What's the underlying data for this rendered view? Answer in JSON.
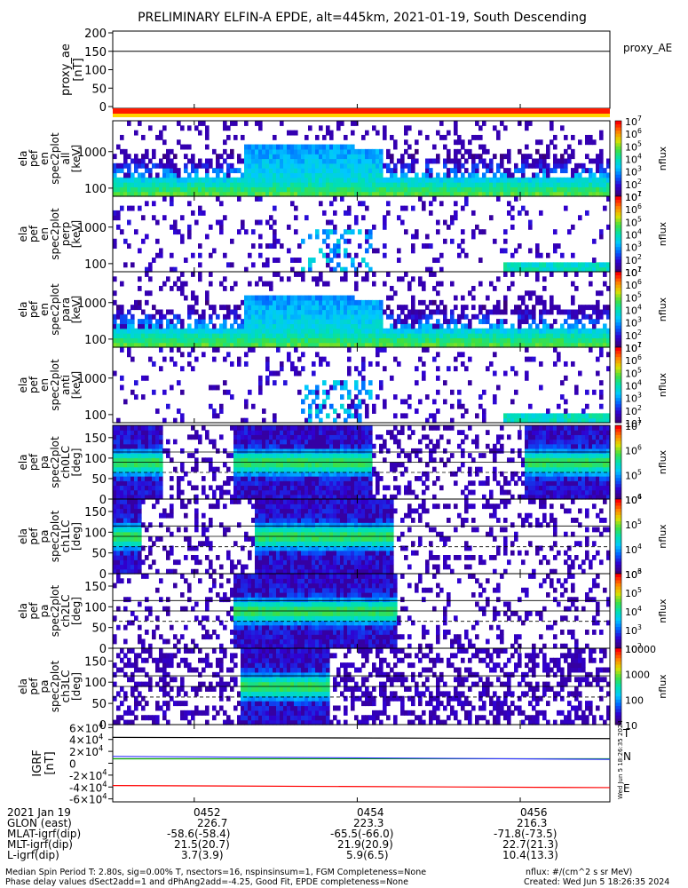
{
  "title": "PRELIMINARY ELFIN-A EPDE, alt=445km, 2021-01-19, South Descending",
  "colors": {
    "background": "#ffffff",
    "axis": "#000000",
    "proxy_bar_red": "#ff1a00",
    "proxy_bar_yellow": "#ffd400",
    "igrf_T": "#000000",
    "igrf_N": "#00a000",
    "igrf_E": "#ff0000",
    "igrf_blue": "#3030ff",
    "colorbar_stops": [
      "#ffffff",
      "#3a007a",
      "#3000d0",
      "#0060ff",
      "#00c8ff",
      "#00e0b0",
      "#40e040",
      "#e0e000",
      "#ff8000",
      "#ff0000"
    ]
  },
  "chart_data": [
    {
      "type": "line",
      "panel": "proxy_ae",
      "ylabel": "proxy_ae\n[nT]",
      "legend": "proxy_AE",
      "ylim": [
        0,
        200
      ],
      "yticks": [
        "200",
        "150",
        "100",
        "50",
        "0"
      ],
      "series": [
        {
          "name": "proxy_AE",
          "values": [
            150,
            150
          ]
        }
      ]
    },
    {
      "type": "heatmap",
      "panel": "pef_en_all",
      "ylabel": [
        "ela",
        "pef",
        "en",
        "spec2plot",
        "all",
        "[keV]"
      ],
      "yaxis": "log",
      "ylim_keV": [
        60,
        7000
      ],
      "yticks": [
        "1000",
        "100"
      ],
      "colorbar": {
        "label": "nflux",
        "scale": "log",
        "range": [
          10,
          10000000
        ],
        "ticks": [
          "10^1",
          "10^2",
          "10^3",
          "10^4",
          "10^5",
          "10^6",
          "10^7"
        ]
      }
    },
    {
      "type": "heatmap",
      "panel": "pef_en_perp",
      "ylabel": [
        "ela",
        "pef",
        "en",
        "spec2plot",
        "perp",
        "[keV]"
      ],
      "yaxis": "log",
      "ylim_keV": [
        60,
        7000
      ],
      "yticks": [
        "1000",
        "100"
      ],
      "colorbar": {
        "label": "nflux",
        "scale": "log",
        "range": [
          10,
          10000000
        ],
        "ticks": [
          "10^1",
          "10^2",
          "10^3",
          "10^4",
          "10^5",
          "10^6",
          "10^7"
        ]
      }
    },
    {
      "type": "heatmap",
      "panel": "pef_en_para",
      "ylabel": [
        "ela",
        "pef",
        "en",
        "spec2plot",
        "para",
        "[keV]"
      ],
      "yaxis": "log",
      "ylim_keV": [
        60,
        7000
      ],
      "yticks": [
        "1000",
        "100"
      ],
      "colorbar": {
        "label": "nflux",
        "scale": "log",
        "range": [
          10,
          10000000
        ],
        "ticks": [
          "10^1",
          "10^2",
          "10^3",
          "10^4",
          "10^5",
          "10^6",
          "10^7"
        ]
      }
    },
    {
      "type": "heatmap",
      "panel": "pef_en_anti",
      "ylabel": [
        "ela",
        "pef",
        "en",
        "spec2plot",
        "anti",
        "[keV]"
      ],
      "yaxis": "log",
      "ylim_keV": [
        60,
        7000
      ],
      "yticks": [
        "1000",
        "100"
      ],
      "colorbar": {
        "label": "nflux",
        "scale": "log",
        "range": [
          10,
          10000000
        ],
        "ticks": [
          "10^1",
          "10^2",
          "10^3",
          "10^4",
          "10^5",
          "10^6",
          "10^7"
        ]
      }
    },
    {
      "type": "heatmap",
      "panel": "pef_pa_ch0LC",
      "ylabel": [
        "ela",
        "pef",
        "pa",
        "spec2plot",
        "ch0LC",
        "[deg]"
      ],
      "ylim": [
        0,
        180
      ],
      "yticks": [
        "150",
        "100",
        "50",
        "0"
      ],
      "colorbar": {
        "label": "nflux",
        "scale": "log",
        "range": [
          10000,
          10000000
        ],
        "ticks": [
          "10^7",
          "10^6",
          "10^5",
          "10^4"
        ]
      }
    },
    {
      "type": "heatmap",
      "panel": "pef_pa_ch1LC",
      "ylabel": [
        "ela",
        "pef",
        "pa",
        "spec2plot",
        "ch1LC",
        "[deg]"
      ],
      "ylim": [
        0,
        180
      ],
      "yticks": [
        "150",
        "100",
        "50",
        "0"
      ],
      "colorbar": {
        "label": "nflux",
        "scale": "log",
        "range": [
          1000,
          1000000
        ],
        "ticks": [
          "10^6",
          "10^5",
          "10^4",
          "10^3"
        ]
      }
    },
    {
      "type": "heatmap",
      "panel": "pef_pa_ch2LC",
      "ylabel": [
        "ela",
        "pef",
        "pa",
        "spec2plot",
        "ch2LC",
        "[deg]"
      ],
      "ylim": [
        0,
        180
      ],
      "yticks": [
        "150",
        "100",
        "50",
        "0"
      ],
      "colorbar": {
        "label": "nflux",
        "scale": "log",
        "range": [
          100,
          1000000
        ],
        "ticks": [
          "10^6",
          "10^5",
          "10^4",
          "10^3",
          "10^2"
        ]
      }
    },
    {
      "type": "heatmap",
      "panel": "pef_pa_ch3LC",
      "ylabel": [
        "ela",
        "pef",
        "pa",
        "spec2plot",
        "ch3LC",
        "[deg]"
      ],
      "ylim": [
        0,
        180
      ],
      "yticks": [
        "150",
        "100",
        "50",
        "0"
      ],
      "colorbar": {
        "label": "nflux",
        "scale": "log",
        "range": [
          10,
          10000
        ],
        "ticks": [
          "10000",
          "1000",
          "100",
          "10"
        ]
      }
    },
    {
      "type": "line",
      "panel": "igrf",
      "ylabel": "IGRF\n[nT]",
      "ylim": [
        -65000,
        65000
      ],
      "yticks": [
        "6×10^4",
        "4×10^4",
        "2×10^4",
        "0",
        "-2×10^4",
        "-4×10^4",
        "-6×10^4"
      ],
      "series": [
        {
          "name": "T",
          "values": [
            43500,
            41500
          ]
        },
        {
          "name": "N",
          "values": [
            7500,
            7600
          ]
        },
        {
          "name": "",
          "values": [
            11500,
            6500
          ]
        },
        {
          "name": "E",
          "values": [
            -37500,
            -41000
          ]
        }
      ]
    }
  ],
  "xaxis": {
    "date": "2021 Jan 19",
    "ticks": [
      "0452",
      "0454",
      "0456"
    ],
    "rows": [
      {
        "label": "GLON (east)",
        "values": [
          "226.7",
          "223.3",
          "216.3"
        ]
      },
      {
        "label": "MLAT-igrf(dip)",
        "values": [
          "-58.6(-58.4)",
          "-65.5(-66.0)",
          "-71.8(-73.5)"
        ]
      },
      {
        "label": "MLT-igrf(dip)",
        "values": [
          "21.5(20.7)",
          "21.9(20.9)",
          "22.7(21.3)"
        ]
      },
      {
        "label": "L-igrf(dip)",
        "values": [
          "3.7(3.9)",
          "5.9(6.5)",
          "10.4(13.3)"
        ]
      }
    ]
  },
  "footer": {
    "line1": "Median Spin Period T: 2.80s, sig=0.00% T, nsectors=16, nspinsinsum=1, FGM Completeness=None",
    "line2": "Phase delay values dSect2add=1 and dPhAng2add=-4.25, Good Fit, EPDE completeness=None",
    "units": "nflux: #/(cm^2 s sr MeV)",
    "created": "Created: Wed Jun  5 18:26:35 2024",
    "side_stamp": "Wed Jun  5 18:26:35 2024"
  }
}
